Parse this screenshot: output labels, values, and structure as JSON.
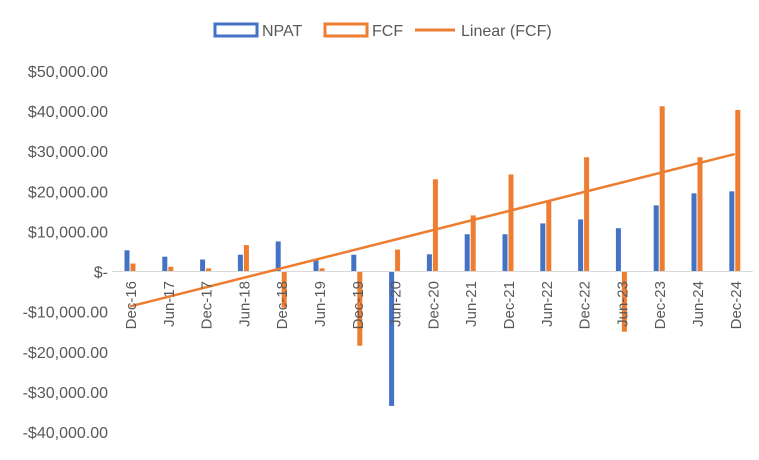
{
  "chart_data": {
    "type": "bar",
    "title": "",
    "xlabel": "",
    "ylabel": "",
    "ylim": [
      -40000,
      50000
    ],
    "y_ticks": [
      50000,
      40000,
      30000,
      20000,
      10000,
      0,
      -10000,
      -20000,
      -30000,
      -40000
    ],
    "y_tick_labels": [
      "$50,000.00",
      "$40,000.00",
      "$30,000.00",
      "$20,000.00",
      "$10,000.00",
      "$-",
      "-$10,000.00",
      "-$20,000.00",
      "-$30,000.00",
      "-$40,000.00"
    ],
    "categories": [
      "Dec-16",
      "Jun-17",
      "Dec-17",
      "Jun-18",
      "Dec-18",
      "Jun-19",
      "Dec-19",
      "Jun-20",
      "Dec-20",
      "Jun-21",
      "Dec-21",
      "Jun-22",
      "Dec-22",
      "Jun-23",
      "Dec-23",
      "Jun-24",
      "Dec-24"
    ],
    "series": [
      {
        "name": "NPAT",
        "color": "#4472C4",
        "values": [
          5300,
          3700,
          3000,
          4200,
          7500,
          3000,
          4200,
          -33500,
          4300,
          9300,
          9300,
          12000,
          13000,
          10800,
          16500,
          19500,
          20000
        ]
      },
      {
        "name": "FCF",
        "color": "#ED7D31",
        "values": [
          2000,
          1200,
          800,
          6600,
          -9000,
          800,
          -18500,
          5500,
          23000,
          14000,
          24200,
          17500,
          28500,
          -15000,
          41200,
          28500,
          40300
        ]
      }
    ],
    "trendline": {
      "name": "Linear (FCF)",
      "color": "#ED7D31",
      "start": -8700,
      "end": 29300
    },
    "legend_position": "top",
    "grid": false
  }
}
